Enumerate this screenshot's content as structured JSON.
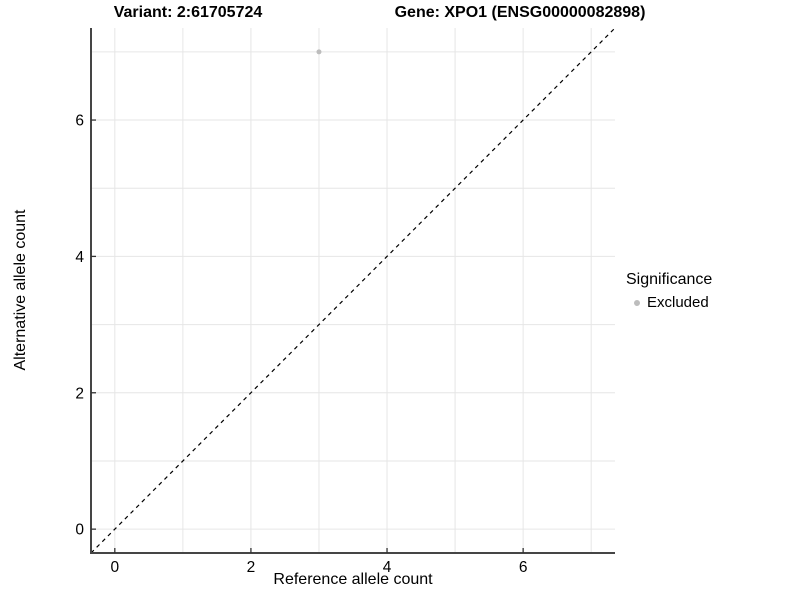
{
  "chart_data": {
    "type": "scatter",
    "title_variant": "Variant: 2:61705724",
    "title_gene": "Gene: XPO1 (ENSG00000082898)",
    "xlabel": "Reference allele count",
    "ylabel": "Alternative allele count",
    "xlim": [
      -0.35,
      7.35
    ],
    "ylim": [
      -0.35,
      7.35
    ],
    "x_ticks": [
      0,
      2,
      4,
      6
    ],
    "y_ticks": [
      0,
      2,
      4,
      6
    ],
    "x_gridlines": [
      0,
      1,
      2,
      3,
      4,
      5,
      6,
      7
    ],
    "y_gridlines": [
      0,
      1,
      2,
      3,
      4,
      5,
      6,
      7
    ],
    "points": [
      {
        "x": 3,
        "y": 7,
        "significance": "Excluded"
      }
    ],
    "reference_line": {
      "type": "identity",
      "style": "dashed",
      "color": "#000000"
    },
    "legend": {
      "title": "Significance",
      "position": "right",
      "entries": [
        {
          "label": "Excluded",
          "color": "#bdbdbd"
        }
      ]
    },
    "style": {
      "point_color": "#bdbdbd",
      "point_radius": 2.5,
      "grid_color": "#e6e6e6",
      "axis_color": "#454545",
      "tick_color": "#333333",
      "text_color": "#000000"
    },
    "grid": true,
    "background": "#ffffff"
  }
}
